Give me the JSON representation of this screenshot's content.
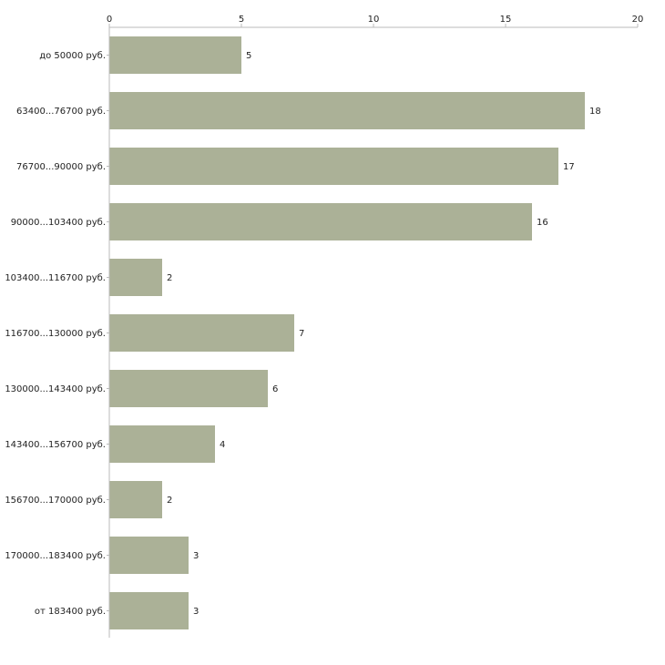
{
  "chart_data": {
    "type": "bar",
    "orientation": "horizontal",
    "title": "",
    "xlabel": "",
    "ylabel": "",
    "xlim": [
      0,
      20
    ],
    "x_ticks": [
      0,
      5,
      10,
      15,
      20
    ],
    "grid": false,
    "bar_color": "#abb197",
    "categories": [
      "до 50000 руб.",
      "63400...76700 руб.",
      "76700...90000 руб.",
      "90000...103400 руб.",
      "103400...116700 руб.",
      "116700...130000 руб.",
      "130000...143400 руб.",
      "143400...156700 руб.",
      "156700...170000 руб.",
      "170000...183400 руб.",
      "от 183400 руб."
    ],
    "values": [
      5,
      18,
      17,
      16,
      2,
      7,
      6,
      4,
      2,
      3,
      3
    ]
  }
}
